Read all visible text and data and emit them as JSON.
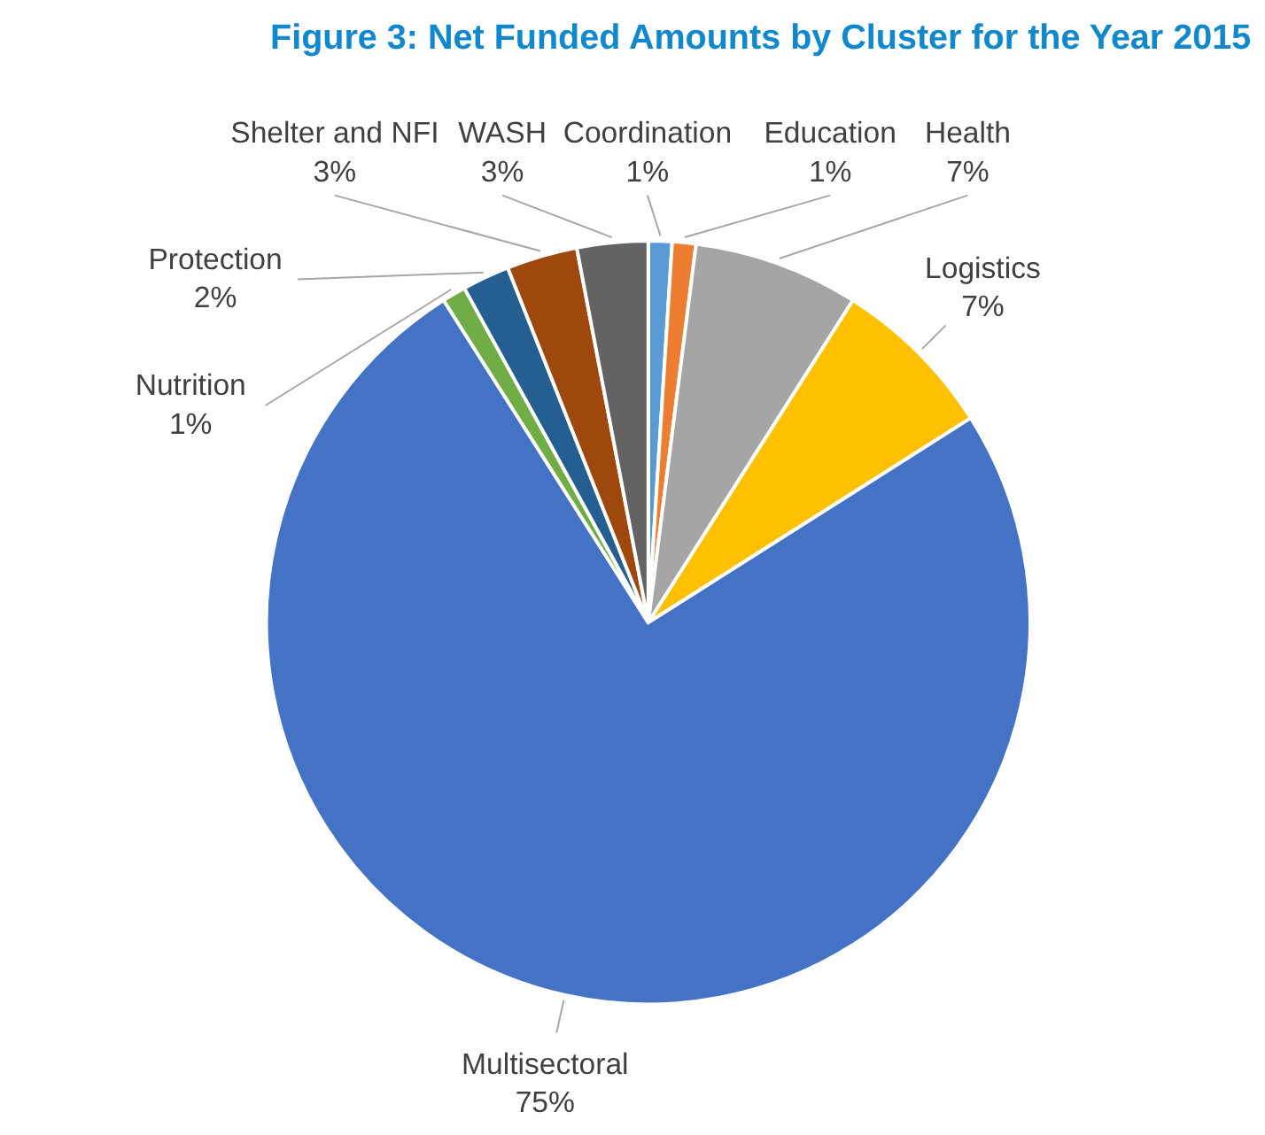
{
  "chart_data": {
    "type": "pie",
    "title": "Figure 3: Net Funded Amounts by Cluster for the Year 2015",
    "categories": [
      "Coordination",
      "Education",
      "Health",
      "Logistics",
      "Multisectoral",
      "Nutrition",
      "Protection",
      "Shelter and NFI",
      "WASH"
    ],
    "values": [
      1,
      1,
      7,
      7,
      75,
      1,
      2,
      3,
      3
    ],
    "colors": [
      "#5b9bd5",
      "#ed7d31",
      "#a5a5a5",
      "#ffc000",
      "#4472c4",
      "#70ad47",
      "#255e91",
      "#9e480e",
      "#636363"
    ],
    "value_labels": [
      "1%",
      "1%",
      "7%",
      "7%",
      "75%",
      "1%",
      "2%",
      "3%",
      "3%"
    ],
    "legend": false
  }
}
